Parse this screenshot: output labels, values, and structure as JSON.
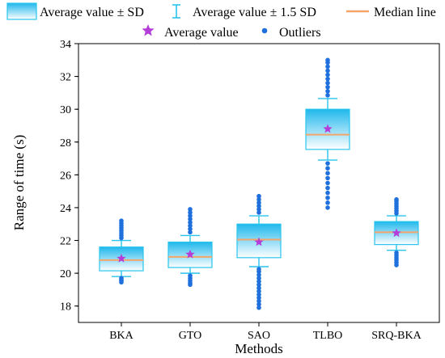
{
  "chart_data": {
    "type": "box",
    "xlabel": "Methods",
    "ylabel": "Range of time (s)",
    "ylim": [
      17,
      34
    ],
    "yticks": [
      18,
      20,
      22,
      24,
      26,
      28,
      30,
      32,
      34
    ],
    "grid": false,
    "legend": {
      "placement": "top",
      "entries": [
        {
          "key": "box",
          "label": "Average value ± SD"
        },
        {
          "key": "whisker",
          "label": "Average value ± 1.5 SD"
        },
        {
          "key": "median",
          "label": "Median line"
        },
        {
          "key": "mean",
          "label": "Average value"
        },
        {
          "key": "outlier",
          "label": "Outliers"
        }
      ]
    },
    "colors": {
      "box_fill_top": "#20b8ec",
      "box_fill_bottom": "#ffffff",
      "box_edge": "#28c4ee",
      "whisker": "#28c4ee",
      "median": "#f5a56a",
      "mean": "#b43cd8",
      "outlier": "#1f70dc"
    },
    "categories": [
      "BKA",
      "GTO",
      "SAO",
      "TLBO",
      "SRQ-BKA"
    ],
    "stats": [
      {
        "mean": 20.9,
        "box_low": 20.15,
        "box_high": 21.6,
        "median": 20.8,
        "whisker_low": 19.8,
        "whisker_high": 22.0,
        "outliers": [
          19.45,
          19.55,
          19.6,
          19.7,
          22.15,
          22.3,
          22.45,
          22.6,
          22.75,
          22.9,
          23.05,
          23.2
        ]
      },
      {
        "mean": 21.15,
        "box_low": 20.35,
        "box_high": 21.9,
        "median": 21.0,
        "whisker_low": 20.0,
        "whisker_high": 22.3,
        "outliers": [
          19.3,
          19.4,
          19.55,
          19.7,
          19.85,
          22.5,
          22.7,
          22.9,
          23.1,
          23.3,
          23.5,
          23.7,
          23.9
        ]
      },
      {
        "mean": 21.9,
        "box_low": 20.95,
        "box_high": 23.0,
        "median": 22.05,
        "whisker_low": 20.4,
        "whisker_high": 23.5,
        "outliers": [
          17.9,
          18.1,
          18.3,
          18.5,
          18.7,
          18.9,
          19.1,
          19.3,
          19.5,
          19.7,
          19.9,
          20.1,
          20.25,
          23.7,
          23.9,
          24.1,
          24.3,
          24.5,
          24.7
        ]
      },
      {
        "mean": 28.8,
        "box_low": 27.55,
        "box_high": 30.0,
        "median": 28.45,
        "whisker_low": 26.9,
        "whisker_high": 30.65,
        "outliers": [
          24.0,
          24.3,
          24.6,
          24.9,
          25.2,
          25.5,
          25.8,
          26.1,
          26.4,
          26.7,
          30.85,
          31.1,
          31.35,
          31.6,
          31.85,
          32.1,
          32.35,
          32.6,
          32.85,
          33.0
        ]
      },
      {
        "mean": 22.45,
        "box_low": 21.75,
        "box_high": 23.15,
        "median": 22.5,
        "whisker_low": 21.4,
        "whisker_high": 23.5,
        "outliers": [
          20.5,
          20.65,
          20.8,
          20.95,
          21.1,
          21.25,
          23.65,
          23.8,
          23.95,
          24.1,
          24.25,
          24.4,
          24.5
        ]
      }
    ]
  }
}
